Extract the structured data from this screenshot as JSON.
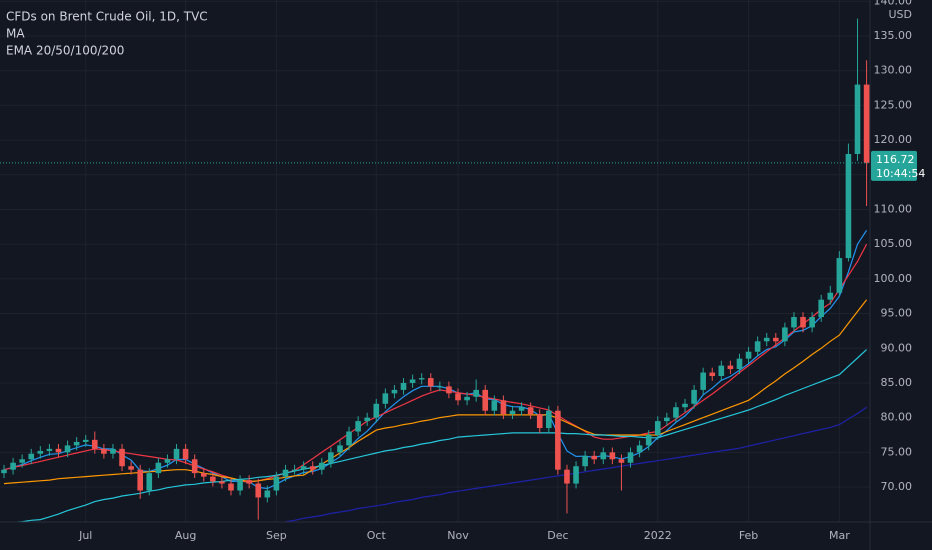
{
  "chart_data": {
    "type": "candlestick",
    "title": "CFDs on Brent Crude Oil, 1D, TVC",
    "indicator_labels": [
      "MA",
      "EMA 20/50/100/200"
    ],
    "currency": "USD",
    "last_price": 116.72,
    "countdown": "10:44:54",
    "up_color": "#26a69a",
    "down_color": "#ef5350",
    "grid": true,
    "ylim": [
      64.96,
      140.19
    ],
    "yticks": [
      {
        "value": 70,
        "label": "70.00"
      },
      {
        "value": 75,
        "label": "75.00"
      },
      {
        "value": 80,
        "label": "80.00"
      },
      {
        "value": 85,
        "label": "85.00"
      },
      {
        "value": 90,
        "label": "90.00"
      },
      {
        "value": 95,
        "label": "95.00"
      },
      {
        "value": 100,
        "label": "100.00"
      },
      {
        "value": 105,
        "label": "105.00"
      },
      {
        "value": 110,
        "label": "110.00"
      },
      {
        "value": 115,
        "label": "115.00"
      },
      {
        "value": 120,
        "label": "120.00"
      },
      {
        "value": 125,
        "label": "125.00"
      },
      {
        "value": 130,
        "label": "130.00"
      },
      {
        "value": 135,
        "label": "135.00"
      },
      {
        "value": 140,
        "label": "140.00"
      }
    ],
    "categories": [
      null,
      null,
      null,
      null,
      null,
      null,
      null,
      null,
      null,
      "Jul",
      null,
      null,
      null,
      null,
      null,
      null,
      null,
      null,
      null,
      null,
      "Aug",
      null,
      null,
      null,
      null,
      null,
      null,
      null,
      null,
      null,
      "Sep",
      null,
      null,
      null,
      null,
      null,
      null,
      null,
      null,
      null,
      null,
      "Oct",
      null,
      null,
      null,
      null,
      null,
      null,
      null,
      null,
      "Nov",
      null,
      null,
      null,
      null,
      null,
      null,
      null,
      null,
      null,
      null,
      "Dec",
      null,
      null,
      null,
      null,
      null,
      null,
      null,
      null,
      null,
      null,
      "2022",
      null,
      null,
      null,
      null,
      null,
      null,
      null,
      null,
      null,
      "Feb",
      null,
      null,
      null,
      null,
      null,
      null,
      null,
      null,
      null,
      "Mar",
      null,
      null,
      null
    ],
    "open": [
      72,
      72.5,
      73.5,
      74,
      74.8,
      75.2,
      75.5,
      75,
      76,
      76.5,
      76.8,
      75.5,
      74.8,
      75.5,
      73,
      72.5,
      69.5,
      72,
      73.5,
      74,
      75.5,
      74,
      72,
      71.5,
      70.8,
      70.5,
      69.5,
      71,
      70.5,
      68.5,
      69.5,
      71.5,
      72.5,
      72.5,
      73,
      72.5,
      73.5,
      75,
      76,
      78,
      79.5,
      80,
      82,
      83.5,
      84,
      85,
      85.5,
      85.7,
      84.5,
      84.5,
      83.5,
      82.5,
      83,
      84,
      81,
      82.5,
      80.5,
      81,
      81.5,
      80.5,
      78.5,
      81,
      72.5,
      70.5,
      73,
      74.5,
      74,
      75,
      74,
      73.5,
      75,
      76,
      77.5,
      79.5,
      80,
      81.5,
      82,
      84,
      86.5,
      86,
      87.5,
      87,
      88.5,
      89.5,
      91,
      91.5,
      91,
      93,
      94.5,
      93,
      94.5,
      97,
      98,
      103,
      118,
      128
    ],
    "high": [
      73.2,
      74.2,
      74.7,
      75.5,
      75.9,
      76.2,
      76.2,
      76.7,
      77.2,
      77.5,
      78,
      76.2,
      76.2,
      76.2,
      73.7,
      73.2,
      72.7,
      74.2,
      74.7,
      76.2,
      76.2,
      74.7,
      72.7,
      72.2,
      71.5,
      71.2,
      71.7,
      71.7,
      71.2,
      70.2,
      72.2,
      73.2,
      73.2,
      73.7,
      73.7,
      74.2,
      75.7,
      76.7,
      78.7,
      80.2,
      80.7,
      82.7,
      84.2,
      84.7,
      85.7,
      86.2,
      86.4,
      86.4,
      85.2,
      85.2,
      84.2,
      83.7,
      85.5,
      84.7,
      83.2,
      83.2,
      81.7,
      82.2,
      82.2,
      81.2,
      81.7,
      81.7,
      73.2,
      73.7,
      75.2,
      75.2,
      75.7,
      75.7,
      74.7,
      75.7,
      76.7,
      78.2,
      80.2,
      80.7,
      82.2,
      82.7,
      84.7,
      87.2,
      87.2,
      88.2,
      88.2,
      89.2,
      90.2,
      91.7,
      92.2,
      92.2,
      93.7,
      95.2,
      95.2,
      95.2,
      97.7,
      99,
      104,
      119.5,
      137.5,
      131.5
    ],
    "low": [
      71.3,
      71.8,
      72.8,
      73.3,
      74.1,
      74.5,
      74.3,
      74.3,
      75.3,
      75.8,
      74.8,
      74.1,
      74.1,
      72.3,
      71.8,
      68.3,
      68.8,
      71.3,
      72.8,
      73.3,
      73.3,
      71.3,
      70.8,
      70.1,
      69.8,
      68.8,
      68.8,
      69.8,
      65.3,
      67.8,
      68.8,
      70.8,
      71.8,
      71.8,
      71.8,
      71.8,
      72.8,
      74.3,
      75.3,
      77.3,
      78.8,
      79.3,
      81.3,
      82.8,
      83.3,
      84.3,
      84.8,
      83.8,
      83.8,
      82.8,
      81.8,
      81.8,
      82.3,
      80.3,
      80.3,
      79.8,
      79.8,
      80.3,
      79.8,
      77.8,
      77.8,
      71.8,
      66.2,
      69.8,
      72.3,
      73.3,
      73.3,
      73.3,
      69.5,
      72.8,
      74.3,
      75.3,
      76.8,
      78.8,
      79.3,
      80.8,
      81.3,
      83.3,
      85.3,
      85.3,
      86.3,
      86.3,
      87.8,
      88.8,
      90.3,
      90.3,
      90.3,
      92.3,
      92.3,
      92.3,
      93.8,
      96.3,
      97.5,
      102.5,
      117,
      110.5
    ],
    "close": [
      72.5,
      73.5,
      74,
      74.8,
      75.2,
      75.5,
      75,
      76,
      76.5,
      76.8,
      75.5,
      74.8,
      75.5,
      73,
      72.5,
      69.5,
      72,
      73.5,
      74,
      75.5,
      74,
      72,
      71.5,
      70.8,
      70.5,
      69.5,
      71,
      70.5,
      68.5,
      69.5,
      71.5,
      72.5,
      72.5,
      73,
      72.5,
      73.5,
      75,
      76,
      78,
      79.5,
      80,
      82,
      83.5,
      84,
      85,
      85.5,
      85.7,
      84.5,
      84.5,
      83.5,
      82.5,
      83,
      84,
      81,
      82.5,
      80.5,
      81,
      81.5,
      80.5,
      78.5,
      81,
      72.5,
      70.5,
      73,
      74.5,
      74,
      75,
      74,
      73.5,
      75,
      76,
      77.5,
      79.5,
      80,
      81.5,
      82,
      84,
      86.5,
      86,
      87.5,
      87,
      88.5,
      89.5,
      91,
      91.5,
      91,
      93,
      94.5,
      93,
      94.5,
      97,
      98,
      103,
      118,
      128,
      116.72
    ],
    "lines": [
      {
        "color": "#2196f3",
        "values": [
          72.5,
          72.85,
          73.25,
          73.79,
          74.28,
          74.71,
          74.81,
          75.23,
          75.67,
          76.07,
          75.87,
          75.5,
          75.5,
          74.63,
          73.88,
          72.35,
          72.23,
          72.67,
          73.14,
          73.97,
          73.98,
          73.29,
          72.66,
          72.01,
          71.48,
          70.79,
          70.86,
          70.73,
          69.95,
          69.79,
          70.39,
          71.13,
          71.61,
          72.1,
          72.24,
          72.68,
          73.49,
          74.37,
          75.64,
          76.99,
          78.04,
          79.43,
          80.85,
          81.95,
          83.02,
          83.89,
          84.52,
          84.51,
          84.5,
          84.15,
          83.57,
          83.37,
          83.59,
          82.68,
          82.62,
          81.88,
          81.57,
          81.55,
          81.18,
          80.24,
          80.51,
          77.71,
          75.19,
          74.42,
          74.45,
          74.29,
          74.54,
          74.35,
          74.05,
          74.38,
          74.95,
          75.84,
          77.12,
          78.13,
          79.31,
          80.25,
          81.56,
          83.29,
          84.24,
          85.38,
          85.95,
          86.84,
          87.77,
          88.9,
          89.81,
          90.23,
          91.2,
          92.36,
          92.58,
          93.25,
          94.56,
          95.76,
          97.5,
          101,
          105,
          107
        ]
      },
      {
        "color": "#f23645",
        "values": [
          72.5,
          72.8,
          73.1,
          73.4,
          73.7,
          74,
          74.3,
          74.6,
          74.9,
          75.2,
          75.5,
          75.4,
          75.2,
          75,
          74.8,
          74.6,
          74.4,
          74.2,
          74,
          73.9,
          73.5,
          73,
          72.6,
          72.2,
          71.7,
          71.3,
          70.9,
          70.7,
          70.9,
          71.2,
          71.6,
          72,
          72.4,
          73.2,
          74.1,
          75,
          75.9,
          76.8,
          77.7,
          78.6,
          79.5,
          80.1,
          80.7,
          81.3,
          81.9,
          82.5,
          83.1,
          83.6,
          84,
          83.8,
          83.6,
          83.4,
          83.2,
          82.9,
          82.7,
          82.4,
          82.2,
          82,
          81.7,
          81.4,
          81.1,
          80.3,
          79.5,
          78.8,
          78,
          77.2,
          76.9,
          76.9,
          77.1,
          77.3,
          77.5,
          77.8,
          78,
          78.9,
          79.8,
          80.7,
          81.6,
          82.5,
          83.4,
          84.4,
          85.4,
          86.5,
          87.5,
          88.5,
          89.5,
          90.5,
          91.5,
          92.5,
          93.5,
          94.5,
          95.6,
          96.5,
          98.5,
          100.5,
          102.5,
          105
        ]
      },
      {
        "color": "#ff9800",
        "values": [
          70.5,
          70.6,
          70.7,
          70.8,
          70.9,
          71,
          71.2,
          71.3,
          71.4,
          71.5,
          71.6,
          71.7,
          71.8,
          71.9,
          72,
          72.1,
          72.2,
          72.3,
          72.4,
          72.5,
          72.5,
          72.3,
          72,
          71.8,
          71.5,
          71.3,
          71,
          70.8,
          70.9,
          71.1,
          71.2,
          71.4,
          71.6,
          71.7,
          72.5,
          73.3,
          74.1,
          74.9,
          75.7,
          76.6,
          77.4,
          78.2,
          78.5,
          78.7,
          79,
          79.2,
          79.5,
          79.7,
          80,
          80.2,
          80.4,
          80.4,
          80.4,
          80.4,
          80.4,
          80.4,
          80.4,
          80.4,
          80.4,
          80.4,
          80.4,
          79.9,
          79.3,
          78.7,
          78.1,
          77.6,
          77.5,
          77.5,
          77.5,
          77.5,
          77.5,
          77.5,
          77.5,
          78,
          78.5,
          79,
          79.5,
          80,
          80.5,
          81,
          81.5,
          82,
          82.5,
          83.4,
          84.4,
          85.3,
          86.3,
          87.2,
          88.1,
          89.1,
          90,
          91,
          91.9,
          93.6,
          95.3,
          97
        ]
      },
      {
        "color": "#26c6da",
        "values": [
          64.8,
          64.9,
          65,
          65.2,
          65.3,
          65.7,
          66.1,
          66.6,
          67,
          67.4,
          67.9,
          68.2,
          68.4,
          68.7,
          68.9,
          69.1,
          69.4,
          69.6,
          69.9,
          70.1,
          70.3,
          70.4,
          70.6,
          70.7,
          70.8,
          71,
          71.1,
          71.2,
          71.4,
          71.5,
          71.7,
          72,
          72.3,
          72.6,
          72.8,
          73.1,
          73.4,
          73.7,
          74,
          74.3,
          74.6,
          74.9,
          75.2,
          75.4,
          75.7,
          75.9,
          76.2,
          76.4,
          76.7,
          76.9,
          77.2,
          77.3,
          77.4,
          77.5,
          77.6,
          77.7,
          77.8,
          77.8,
          77.8,
          77.8,
          77.8,
          77.8,
          77.7,
          77.7,
          77.6,
          77.5,
          77.5,
          77.4,
          77.3,
          77.3,
          77.2,
          77.1,
          77.1,
          77.5,
          77.9,
          78.3,
          78.7,
          79.1,
          79.5,
          79.9,
          80.3,
          80.7,
          81.1,
          81.6,
          82.1,
          82.6,
          83.2,
          83.7,
          84.2,
          84.7,
          85.2,
          85.7,
          86.2,
          87.4,
          88.6,
          89.8
        ]
      },
      {
        "color": "#1e22aa",
        "values": [
          null,
          null,
          null,
          null,
          null,
          null,
          null,
          null,
          null,
          null,
          null,
          null,
          null,
          null,
          null,
          null,
          null,
          null,
          null,
          null,
          null,
          null,
          null,
          null,
          null,
          null,
          null,
          null,
          null,
          null,
          null,
          65,
          65.2,
          65.5,
          65.7,
          65.9,
          66.2,
          66.4,
          66.6,
          66.9,
          67.1,
          67.3,
          67.5,
          67.8,
          68,
          68.2,
          68.5,
          68.7,
          68.9,
          69.2,
          69.4,
          69.6,
          69.8,
          70,
          70.2,
          70.4,
          70.6,
          70.8,
          71,
          71.2,
          71.4,
          71.6,
          71.8,
          72,
          72.2,
          72.4,
          72.6,
          72.8,
          73,
          73.2,
          73.4,
          73.6,
          73.8,
          74,
          74.2,
          74.4,
          74.6,
          74.8,
          75,
          75.2,
          75.4,
          75.6,
          75.9,
          76.2,
          76.5,
          76.8,
          77.1,
          77.4,
          77.7,
          78,
          78.3,
          78.6,
          79,
          79.8,
          80.6,
          81.5
        ]
      }
    ]
  }
}
